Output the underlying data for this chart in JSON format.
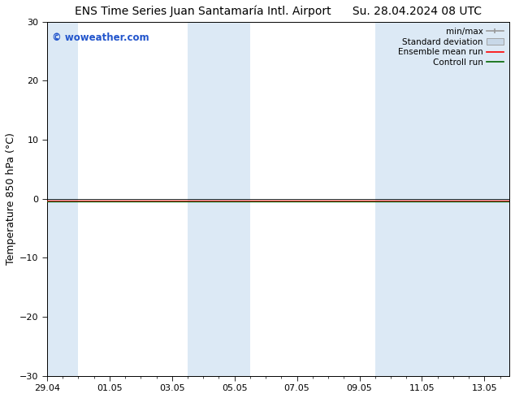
{
  "title": "ENS Time Series Juan Santamaría Intl. Airport      Su. 28.04.2024 08 UTC",
  "ylabel": "Temperature 850 hPa (°C)",
  "ylim": [
    -30,
    30
  ],
  "yticks": [
    -30,
    -20,
    -10,
    0,
    10,
    20,
    30
  ],
  "xtick_labels": [
    "29.04",
    "01.05",
    "03.05",
    "05.05",
    "07.05",
    "09.05",
    "11.05",
    "13.05"
  ],
  "xtick_positions": [
    0,
    2,
    4,
    6,
    8,
    10,
    12,
    14
  ],
  "xlim": [
    0,
    14.8
  ],
  "watermark": "© woweather.com",
  "watermark_color": "#2255cc",
  "background_color": "#ffffff",
  "shaded_bands": [
    {
      "x_start": -0.1,
      "x_end": 1.0,
      "color": "#dce9f5"
    },
    {
      "x_start": 4.5,
      "x_end": 6.5,
      "color": "#dce9f5"
    },
    {
      "x_start": 10.5,
      "x_end": 14.8,
      "color": "#dce9f5"
    }
  ],
  "line_y": -0.3,
  "ensemble_mean_color": "#ff0000",
  "control_run_color": "#006600",
  "legend_labels": [
    "min/max",
    "Standard deviation",
    "Ensemble mean run",
    "Controll run"
  ],
  "minmax_color": "#999999",
  "stddev_color": "#c8d8e8",
  "title_fontsize": 10,
  "ylabel_fontsize": 9,
  "tick_fontsize": 8,
  "legend_fontsize": 7.5
}
